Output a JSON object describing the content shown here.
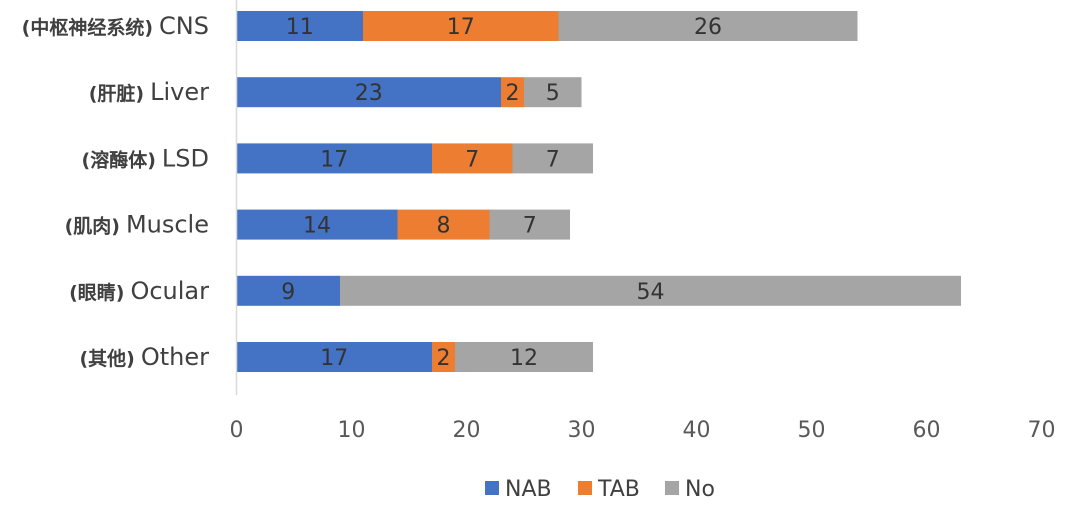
{
  "chart_data": {
    "type": "bar",
    "orientation": "horizontal",
    "stacked": true,
    "categories": [
      {
        "zh": "(中枢神经系统)",
        "en": "CNS"
      },
      {
        "zh": "(肝脏)",
        "en": "Liver"
      },
      {
        "zh": "(溶酶体)",
        "en": "LSD"
      },
      {
        "zh": "(肌肉)",
        "en": "Muscle"
      },
      {
        "zh": "(眼睛)",
        "en": "Ocular"
      },
      {
        "zh": "(其他)",
        "en": "Other"
      }
    ],
    "series": [
      {
        "name": "NAB",
        "color": "#4472C4",
        "values": [
          11,
          23,
          17,
          14,
          9,
          17
        ]
      },
      {
        "name": "TAB",
        "color": "#ED7D31",
        "values": [
          17,
          2,
          7,
          8,
          0,
          2
        ]
      },
      {
        "name": "No",
        "color": "#A5A5A5",
        "values": [
          26,
          5,
          7,
          7,
          54,
          12
        ]
      }
    ],
    "xlim": [
      0,
      70
    ],
    "xticks": [
      0,
      10,
      20,
      30,
      40,
      50,
      60,
      70
    ],
    "grid": false,
    "legend_position": "bottom"
  }
}
